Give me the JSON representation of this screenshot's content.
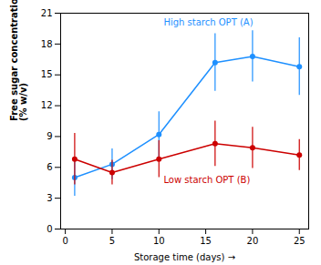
{
  "chart_data": {
    "type": "line",
    "x": [
      1,
      5,
      10,
      16,
      20,
      25
    ],
    "series": [
      {
        "color": "#1e90ff",
        "values": [
          5.0,
          6.3,
          9.2,
          16.2,
          16.8,
          15.8
        ],
        "yerr": [
          1.8,
          1.5,
          2.2,
          2.8,
          2.5,
          2.8
        ],
        "marker": "o"
      },
      {
        "color": "#cc0000",
        "values": [
          6.8,
          5.5,
          6.8,
          8.3,
          7.9,
          7.2
        ],
        "yerr": [
          2.5,
          1.2,
          1.8,
          2.2,
          2.0,
          1.5
        ],
        "marker": "o"
      }
    ],
    "annotations": [
      {
        "text": "High starch OPT (A)",
        "x": 10.5,
        "y": 19.8,
        "color": "#1e90ff"
      },
      {
        "text": "Low starch OPT (B)",
        "x": 10.5,
        "y": 4.5,
        "color": "#cc0000"
      }
    ],
    "xlabel": "Storage time (days)",
    "ylabel": "Free sugar concentration\n(% w/v)",
    "xlim": [
      -0.5,
      26
    ],
    "xticks": [
      0,
      5,
      10,
      15,
      20,
      25
    ],
    "ylim": [
      0,
      21
    ],
    "yticks": [
      0,
      3,
      6,
      9,
      12,
      15,
      18,
      21
    ]
  }
}
